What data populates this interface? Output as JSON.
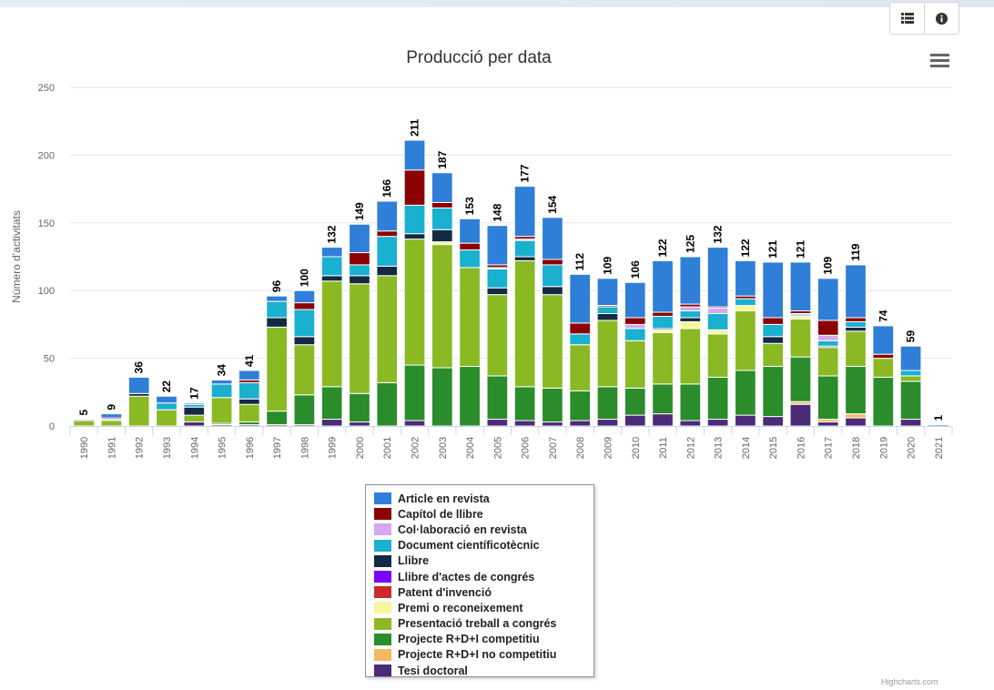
{
  "toolbar": {
    "buttons": [
      {
        "name": "table-view-button",
        "icon": "list-icon"
      },
      {
        "name": "info-button",
        "icon": "info-icon"
      }
    ]
  },
  "menu_icon": "hamburger-menu-icon",
  "credits": "Highcharts.com",
  "colors": {
    "text": "#333333",
    "grid": "#e6e6e6",
    "axis": "#ccd6eb"
  },
  "chart_data": {
    "type": "bar",
    "stacked": true,
    "title": "Producció per data",
    "xlabel": "",
    "ylabel": "Número d'activitats",
    "ylim": [
      0,
      250
    ],
    "yticks": [
      0,
      50,
      100,
      150,
      200,
      250
    ],
    "grid": true,
    "legend_position": "bottom-center",
    "categories": [
      "1990",
      "1991",
      "1992",
      "1993",
      "1994",
      "1995",
      "1996",
      "1997",
      "1998",
      "1999",
      "2000",
      "2001",
      "2002",
      "2003",
      "2004",
      "2005",
      "2006",
      "2007",
      "2008",
      "2009",
      "2010",
      "2011",
      "2012",
      "2013",
      "2014",
      "2015",
      "2016",
      "2017",
      "2018",
      "2019",
      "2020",
      "2021"
    ],
    "totals": [
      5,
      9,
      36,
      22,
      17,
      34,
      41,
      96,
      100,
      132,
      149,
      166,
      211,
      187,
      153,
      148,
      177,
      154,
      112,
      109,
      106,
      122,
      125,
      132,
      122,
      121,
      121,
      109,
      119,
      74,
      59,
      1
    ],
    "series": [
      {
        "name": "Tesi doctoral",
        "color": "#4b2a78",
        "values": [
          0,
          0,
          0,
          0,
          3,
          1,
          1,
          1,
          1,
          5,
          3,
          0,
          4,
          0,
          0,
          5,
          4,
          3,
          4,
          5,
          8,
          9,
          4,
          5,
          8,
          7,
          16,
          3,
          6,
          0,
          5,
          0
        ]
      },
      {
        "name": "Projecte R+D+I no competitiu",
        "color": "#f4b860",
        "values": [
          0,
          0,
          0,
          0,
          0,
          0,
          0,
          0,
          0,
          0,
          0,
          0,
          0,
          0,
          0,
          0,
          0,
          0,
          0,
          0,
          0,
          0,
          0,
          0,
          0,
          0,
          2,
          2,
          3,
          0,
          0,
          0
        ]
      },
      {
        "name": "Projecte R+D+I competitiu",
        "color": "#2a8c2a",
        "values": [
          0,
          0,
          0,
          0,
          0,
          1,
          2,
          10,
          22,
          24,
          21,
          32,
          41,
          43,
          44,
          32,
          25,
          25,
          22,
          24,
          20,
          22,
          27,
          31,
          33,
          37,
          33,
          32,
          35,
          36,
          28,
          0
        ]
      },
      {
        "name": "Presentació treball a congrés",
        "color": "#8ab924",
        "values": [
          4,
          4,
          22,
          12,
          5,
          19,
          13,
          62,
          37,
          78,
          81,
          79,
          93,
          91,
          73,
          60,
          93,
          69,
          34,
          49,
          35,
          38,
          41,
          32,
          44,
          17,
          28,
          21,
          26,
          14,
          4,
          0
        ]
      },
      {
        "name": "Premi o reconeixement",
        "color": "#f7f79a",
        "values": [
          0,
          0,
          0,
          0,
          0,
          0,
          0,
          0,
          0,
          0,
          0,
          0,
          0,
          2,
          0,
          0,
          0,
          0,
          0,
          0,
          0,
          2,
          5,
          3,
          4,
          0,
          2,
          0,
          0,
          0,
          0,
          0
        ]
      },
      {
        "name": "Patent d'invenció",
        "color": "#cc2a2a",
        "values": [
          0,
          0,
          0,
          0,
          0,
          0,
          0,
          0,
          0,
          0,
          0,
          0,
          0,
          0,
          0,
          0,
          0,
          0,
          0,
          0,
          0,
          0,
          0,
          0,
          0,
          0,
          0,
          0,
          0,
          0,
          0,
          0
        ]
      },
      {
        "name": "Llibre d'actes de congrés",
        "color": "#7a00ff",
        "values": [
          0,
          0,
          0,
          0,
          0,
          0,
          0,
          0,
          0,
          0,
          0,
          0,
          0,
          0,
          0,
          0,
          0,
          0,
          0,
          0,
          0,
          0,
          0,
          0,
          0,
          0,
          0,
          0,
          0,
          0,
          0,
          0
        ]
      },
      {
        "name": "Llibre",
        "color": "#142a44",
        "values": [
          0,
          0,
          2,
          0,
          6,
          0,
          4,
          7,
          6,
          4,
          6,
          7,
          4,
          9,
          0,
          5,
          3,
          6,
          0,
          5,
          0,
          1,
          3,
          0,
          0,
          5,
          0,
          1,
          3,
          0,
          0,
          0
        ]
      },
      {
        "name": "Document científicotècnic",
        "color": "#1ab0cf",
        "values": [
          0,
          0,
          0,
          5,
          2,
          10,
          12,
          12,
          20,
          14,
          8,
          22,
          21,
          16,
          13,
          14,
          12,
          16,
          8,
          5,
          9,
          9,
          5,
          12,
          5,
          9,
          1,
          4,
          4,
          0,
          4,
          0
        ]
      },
      {
        "name": "Col·laboració en revista",
        "color": "#d6a8f0",
        "values": [
          1,
          1,
          0,
          0,
          0,
          0,
          0,
          0,
          0,
          0,
          0,
          0,
          0,
          0,
          0,
          1,
          1,
          0,
          0,
          0,
          3,
          0,
          3,
          4,
          0,
          0,
          1,
          4,
          0,
          0,
          0,
          0
        ]
      },
      {
        "name": "Capítol de llibre",
        "color": "#8b0000",
        "values": [
          0,
          1,
          0,
          0,
          0,
          0,
          2,
          0,
          5,
          0,
          9,
          4,
          26,
          4,
          5,
          2,
          2,
          4,
          8,
          1,
          5,
          3,
          2,
          1,
          2,
          5,
          2,
          11,
          3,
          3,
          0,
          0
        ]
      },
      {
        "name": "Article en revista",
        "color": "#2f7ed8",
        "values": [
          0,
          3,
          12,
          5,
          1,
          3,
          7,
          4,
          9,
          7,
          21,
          22,
          22,
          22,
          18,
          29,
          37,
          31,
          36,
          20,
          26,
          38,
          35,
          44,
          26,
          41,
          36,
          31,
          39,
          21,
          18,
          1
        ]
      }
    ],
    "legend_order": [
      "Article en revista",
      "Capítol de llibre",
      "Col·laboració en revista",
      "Document científicotècnic",
      "Llibre",
      "Llibre d'actes de congrés",
      "Patent d'invenció",
      "Premi o reconeixement",
      "Presentació treball a congrés",
      "Projecte R+D+I competitiu",
      "Projecte R+D+I no competitiu",
      "Tesi doctoral"
    ]
  }
}
